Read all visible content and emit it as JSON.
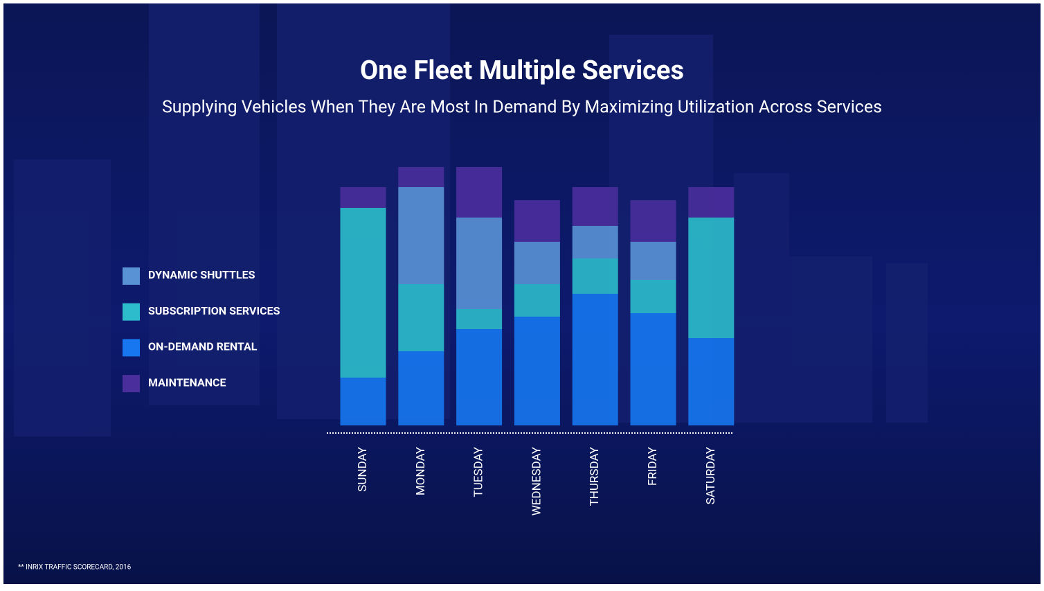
{
  "chart_data": {
    "type": "stacked_bar",
    "title": "One Fleet Multiple Services",
    "subtitle": "Supplying Vehicles When They Are Most In Demand By Maximizing Utilization Across Services",
    "source": "** INRIX TRAFFIC SCORECARD, 2016",
    "categories": [
      "SUNDAY",
      "MONDAY",
      "TUESDAY",
      "WEDNESDAY",
      "THURSDAY",
      "FRIDAY",
      "SATURDAY"
    ],
    "series": [
      {
        "name": "DYNAMIC SHUTTLES",
        "color": "#5a92d6",
        "values": [
          0,
          140,
          132,
          61,
          47,
          55,
          0
        ]
      },
      {
        "name": "SUBSCRIPTION SERVICES",
        "color": "#2cbccb",
        "values": [
          245,
          97,
          29,
          47,
          51,
          48,
          174
        ]
      },
      {
        "name": "ON-DEMAND RENTAL",
        "color": "#1677f0",
        "values": [
          69,
          107,
          139,
          157,
          190,
          162,
          126
        ]
      },
      {
        "name": "MAINTENANCE",
        "color": "#4a2e9c",
        "values": [
          30,
          29,
          73,
          60,
          56,
          60,
          44
        ]
      }
    ],
    "ylim": [
      0,
      380
    ]
  }
}
